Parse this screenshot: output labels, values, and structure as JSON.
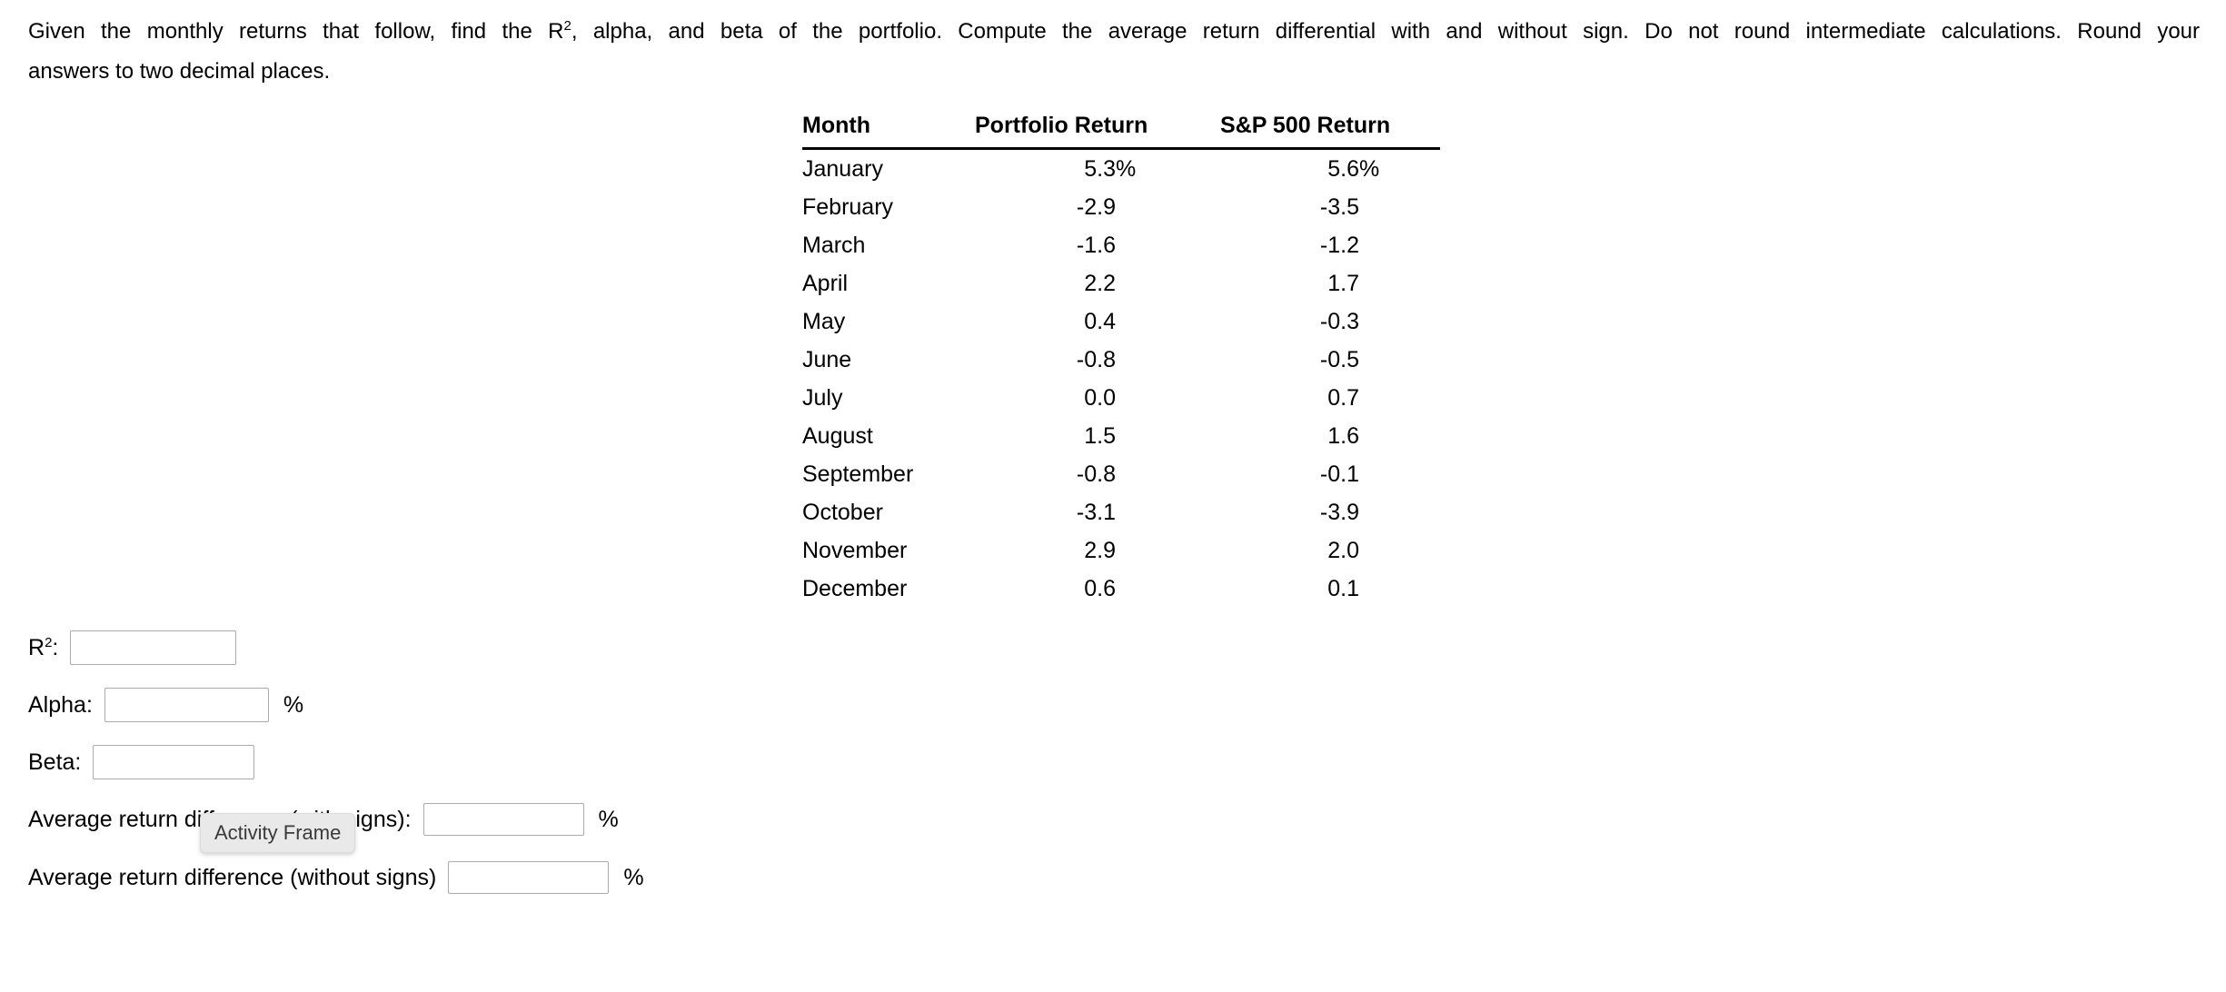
{
  "question": {
    "line1_pre": "Given the monthly returns that follow, find the R",
    "r_sup": "2",
    "line1_post": ", alpha, and beta of the portfolio. Compute the average return differential with and without sign. Do not round intermediate calculations. Round your",
    "line2": "answers to two decimal places."
  },
  "table": {
    "headers": [
      "Month",
      "Portfolio Return",
      "S&P 500 Return"
    ],
    "rows": [
      {
        "month": "January",
        "portfolio": "5.3%",
        "sp500": "5.6%"
      },
      {
        "month": "February",
        "portfolio": "-2.9",
        "sp500": "-3.5"
      },
      {
        "month": "March",
        "portfolio": "-1.6",
        "sp500": "-1.2"
      },
      {
        "month": "April",
        "portfolio": "2.2",
        "sp500": "1.7"
      },
      {
        "month": "May",
        "portfolio": "0.4",
        "sp500": "-0.3"
      },
      {
        "month": "June",
        "portfolio": "-0.8",
        "sp500": "-0.5"
      },
      {
        "month": "July",
        "portfolio": "0.0",
        "sp500": "0.7"
      },
      {
        "month": "August",
        "portfolio": "1.5",
        "sp500": "1.6"
      },
      {
        "month": "September",
        "portfolio": "-0.8",
        "sp500": "-0.1"
      },
      {
        "month": "October",
        "portfolio": "-3.1",
        "sp500": "-3.9"
      },
      {
        "month": "November",
        "portfolio": "2.9",
        "sp500": "2.0"
      },
      {
        "month": "December",
        "portfolio": "0.6",
        "sp500": "0.1"
      }
    ]
  },
  "answers": {
    "r2_base": "R",
    "r2_sup": "2",
    "r2_colon": ":",
    "alpha_label": "Alpha:",
    "beta_label": "Beta:",
    "with_signs_label": "Average return difference (with signs):",
    "without_signs_label": "Average return difference (without signs)",
    "percent": "%",
    "inputs": {
      "r2": "",
      "alpha": "",
      "beta": "",
      "with_signs": "",
      "without_signs": ""
    }
  },
  "tooltip": {
    "label": "Activity Frame"
  },
  "colors": {
    "text": "#000000",
    "table_rule": "#000000",
    "input_border": "#ababab",
    "tooltip_bg": "#e9e9e9",
    "tooltip_text": "#3a3a3a"
  }
}
